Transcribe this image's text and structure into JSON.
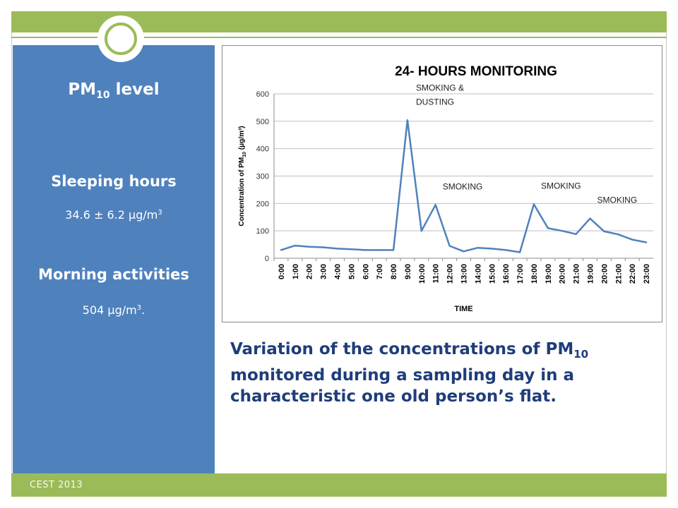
{
  "slide": {
    "footer": "CEST 2013",
    "left_panel": {
      "title_main": "PM",
      "title_sub": "10",
      "title_rest": " level",
      "sleeping_label": "Sleeping hours",
      "sleeping_value": "34.6 ± 6.2 μg/m",
      "sleeping_sup": "3",
      "morning_label": "Morning activities",
      "morning_value": "504 μg/m",
      "morning_sup": "3",
      "morning_suffix": "."
    },
    "caption": {
      "part1": "Variation of the concentrations of PM",
      "sub": "10",
      "part2": " monitored during a sampling day in a characteristic one old person’s flat."
    }
  },
  "colors": {
    "accent_green": "#9bbb59",
    "panel_blue": "#4f81bd",
    "line_blue": "#4f81bd",
    "caption_blue": "#1f3d7a"
  },
  "chart_data": {
    "type": "line",
    "title": "24- HOURS MONITORING",
    "xlabel": "TIME",
    "ylabel_main": "Concentration of PM",
    "ylabel_sub": "10",
    "ylabel_unit": " (μg/m³)",
    "ylim": [
      0,
      600
    ],
    "yticks": [
      0,
      100,
      200,
      300,
      400,
      500,
      600
    ],
    "grid": true,
    "categories": [
      "0:00",
      "1:00",
      "2:00",
      "3:00",
      "4:00",
      "5:00",
      "6:00",
      "7:00",
      "8:00",
      "9:00",
      "10:00",
      "11:00",
      "12:00",
      "13:00",
      "14:00",
      "15:00",
      "16:00",
      "17:00",
      "18:00",
      "19:00",
      "20:00",
      "21:00",
      "19:00",
      "20:00",
      "21:00",
      "22:00",
      "23:00"
    ],
    "values": [
      30,
      46,
      42,
      40,
      35,
      33,
      30,
      30,
      30,
      504,
      100,
      195,
      45,
      25,
      38,
      35,
      30,
      22,
      197,
      110,
      100,
      88,
      145,
      98,
      87,
      68,
      58
    ],
    "annotations": [
      {
        "lines": [
          "SMOKING &",
          "DUSTING"
        ],
        "index": 9
      },
      {
        "lines": [
          "SMOKING"
        ],
        "index": 11
      },
      {
        "lines": [
          "SMOKING"
        ],
        "index": 18
      },
      {
        "lines": [
          "SMOKING"
        ],
        "index": 22
      }
    ]
  }
}
